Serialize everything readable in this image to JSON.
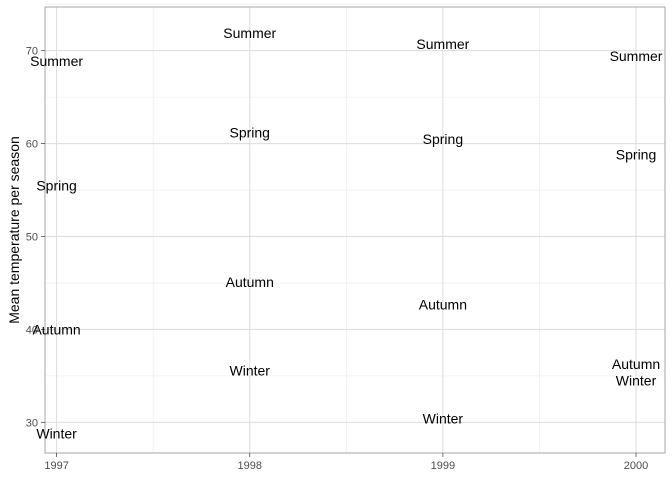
{
  "chart_data": {
    "type": "scatter",
    "title": "",
    "xlabel": "",
    "ylabel": "Mean temperature per season",
    "x_ticks": [
      "1997",
      "1998",
      "1999",
      "2000"
    ],
    "y_ticks": [
      30,
      40,
      50,
      60,
      70
    ],
    "xlim": [
      1996.94,
      2000.15
    ],
    "ylim": [
      26.7,
      74.7
    ],
    "grid": true,
    "points": [
      {
        "x": 1997,
        "y": 68.9,
        "label": "Summer"
      },
      {
        "x": 1997,
        "y": 55.5,
        "label": "Spring"
      },
      {
        "x": 1997,
        "y": 40.0,
        "label": "Autumn"
      },
      {
        "x": 1997,
        "y": 28.8,
        "label": "Winter"
      },
      {
        "x": 1998,
        "y": 71.9,
        "label": "Summer"
      },
      {
        "x": 1998,
        "y": 61.2,
        "label": "Spring"
      },
      {
        "x": 1998,
        "y": 45.1,
        "label": "Autumn"
      },
      {
        "x": 1998,
        "y": 35.6,
        "label": "Winter"
      },
      {
        "x": 1999,
        "y": 70.7,
        "label": "Summer"
      },
      {
        "x": 1999,
        "y": 60.5,
        "label": "Spring"
      },
      {
        "x": 1999,
        "y": 42.7,
        "label": "Autumn"
      },
      {
        "x": 1999,
        "y": 30.4,
        "label": "Winter"
      },
      {
        "x": 2000,
        "y": 69.4,
        "label": "Summer"
      },
      {
        "x": 2000,
        "y": 58.8,
        "label": "Spring"
      },
      {
        "x": 2000,
        "y": 36.3,
        "label": "Autumn"
      },
      {
        "x": 2000,
        "y": 34.5,
        "label": "Winter"
      }
    ]
  }
}
